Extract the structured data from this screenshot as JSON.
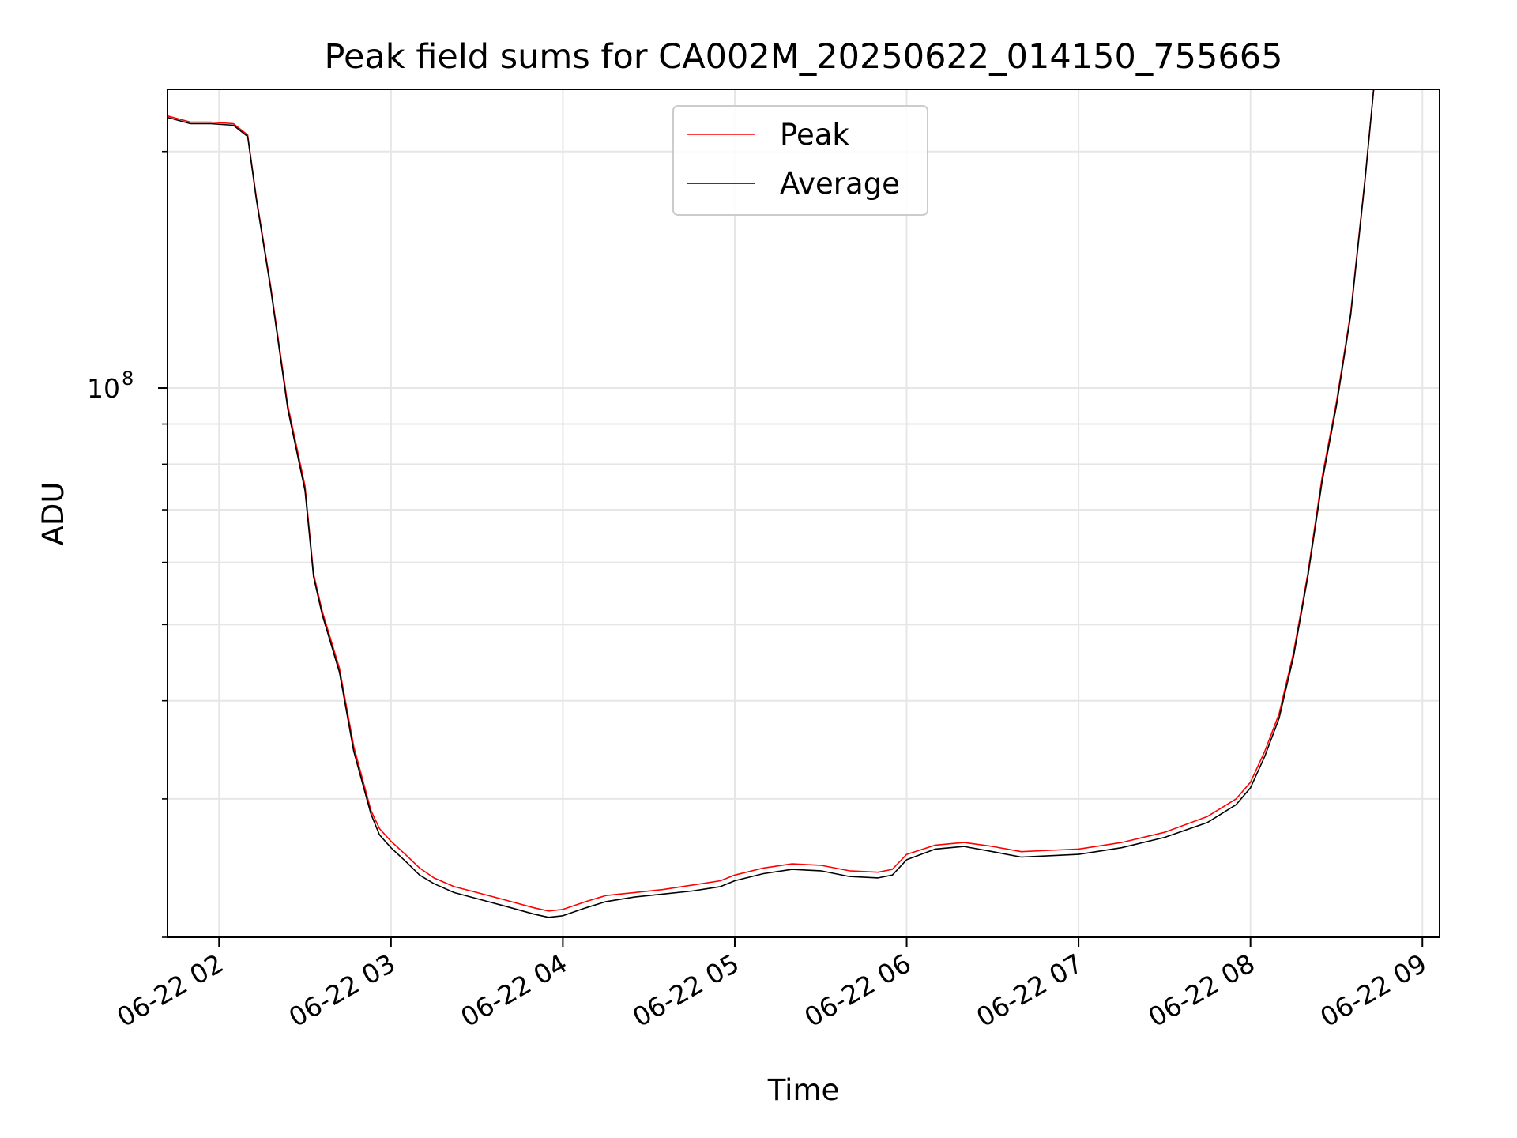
{
  "chart_data": {
    "type": "line",
    "title": "Peak field sums for CA002M_20250622_014150_755665",
    "xlabel": "Time",
    "ylabel": "ADU",
    "y_scale": "log",
    "grid": true,
    "legend_position": "upper-center",
    "xlim": [
      "2025-06-22 01:42",
      "2025-06-22 09:06"
    ],
    "ylim": [
      20000000,
      240000000
    ],
    "x_ticks": [
      {
        "value": "2025-06-22 02:00",
        "label": "06-22 02"
      },
      {
        "value": "2025-06-22 03:00",
        "label": "06-22 03"
      },
      {
        "value": "2025-06-22 04:00",
        "label": "06-22 04"
      },
      {
        "value": "2025-06-22 05:00",
        "label": "06-22 05"
      },
      {
        "value": "2025-06-22 06:00",
        "label": "06-22 06"
      },
      {
        "value": "2025-06-22 07:00",
        "label": "06-22 07"
      },
      {
        "value": "2025-06-22 08:00",
        "label": "06-22 08"
      },
      {
        "value": "2025-06-22 09:00",
        "label": "06-22 09"
      }
    ],
    "y_major_ticks": [
      {
        "value": 100000000,
        "base": "10",
        "exponent": "8"
      }
    ],
    "y_minor_ticks": [
      20000000,
      30000000,
      40000000,
      50000000,
      60000000,
      70000000,
      80000000,
      90000000,
      200000000
    ],
    "series": [
      {
        "name": "Peak",
        "color": "#ff0000",
        "x": [
          "2025-06-22 01:42",
          "2025-06-22 01:50",
          "2025-06-22 01:57",
          "2025-06-22 02:05",
          "2025-06-22 02:10",
          "2025-06-22 02:13",
          "2025-06-22 02:18",
          "2025-06-22 02:24",
          "2025-06-22 02:30",
          "2025-06-22 02:33",
          "2025-06-22 02:36",
          "2025-06-22 02:42",
          "2025-06-22 02:47",
          "2025-06-22 02:53",
          "2025-06-22 02:56",
          "2025-06-22 03:00",
          "2025-06-22 03:05",
          "2025-06-22 03:10",
          "2025-06-22 03:15",
          "2025-06-22 03:22",
          "2025-06-22 03:30",
          "2025-06-22 03:40",
          "2025-06-22 03:50",
          "2025-06-22 03:55",
          "2025-06-22 04:00",
          "2025-06-22 04:08",
          "2025-06-22 04:15",
          "2025-06-22 04:25",
          "2025-06-22 04:35",
          "2025-06-22 04:45",
          "2025-06-22 04:55",
          "2025-06-22 05:00",
          "2025-06-22 05:10",
          "2025-06-22 05:20",
          "2025-06-22 05:30",
          "2025-06-22 05:40",
          "2025-06-22 05:50",
          "2025-06-22 05:55",
          "2025-06-22 06:00",
          "2025-06-22 06:10",
          "2025-06-22 06:20",
          "2025-06-22 06:30",
          "2025-06-22 06:40",
          "2025-06-22 06:50",
          "2025-06-22 07:00",
          "2025-06-22 07:15",
          "2025-06-22 07:30",
          "2025-06-22 07:45",
          "2025-06-22 07:55",
          "2025-06-22 08:00",
          "2025-06-22 08:05",
          "2025-06-22 08:10",
          "2025-06-22 08:15",
          "2025-06-22 08:20",
          "2025-06-22 08:25",
          "2025-06-22 08:30",
          "2025-06-22 08:35",
          "2025-06-22 08:40",
          "2025-06-22 08:43"
        ],
        "y": [
          222000000,
          218000000,
          218000000,
          217000000,
          210000000,
          175000000,
          135000000,
          95000000,
          75000000,
          58000000,
          52000000,
          44000000,
          35000000,
          29000000,
          27500000,
          26500000,
          25500000,
          24500000,
          23800000,
          23200000,
          22800000,
          22300000,
          21800000,
          21600000,
          21700000,
          22200000,
          22600000,
          22800000,
          23000000,
          23300000,
          23600000,
          24000000,
          24500000,
          24800000,
          24700000,
          24300000,
          24200000,
          24400000,
          25500000,
          26200000,
          26400000,
          26100000,
          25700000,
          25800000,
          25900000,
          26400000,
          27200000,
          28500000,
          30000000,
          31500000,
          34500000,
          38500000,
          46000000,
          58000000,
          77000000,
          96000000,
          125000000,
          185000000,
          240000000
        ]
      },
      {
        "name": "Average",
        "color": "#000000",
        "x": [
          "2025-06-22 01:42",
          "2025-06-22 01:50",
          "2025-06-22 01:57",
          "2025-06-22 02:05",
          "2025-06-22 02:10",
          "2025-06-22 02:13",
          "2025-06-22 02:18",
          "2025-06-22 02:24",
          "2025-06-22 02:30",
          "2025-06-22 02:33",
          "2025-06-22 02:36",
          "2025-06-22 02:42",
          "2025-06-22 02:47",
          "2025-06-22 02:53",
          "2025-06-22 02:56",
          "2025-06-22 03:00",
          "2025-06-22 03:05",
          "2025-06-22 03:10",
          "2025-06-22 03:15",
          "2025-06-22 03:22",
          "2025-06-22 03:30",
          "2025-06-22 03:40",
          "2025-06-22 03:50",
          "2025-06-22 03:55",
          "2025-06-22 04:00",
          "2025-06-22 04:08",
          "2025-06-22 04:15",
          "2025-06-22 04:25",
          "2025-06-22 04:35",
          "2025-06-22 04:45",
          "2025-06-22 04:55",
          "2025-06-22 05:00",
          "2025-06-22 05:10",
          "2025-06-22 05:20",
          "2025-06-22 05:30",
          "2025-06-22 05:40",
          "2025-06-22 05:50",
          "2025-06-22 05:55",
          "2025-06-22 06:00",
          "2025-06-22 06:10",
          "2025-06-22 06:20",
          "2025-06-22 06:30",
          "2025-06-22 06:40",
          "2025-06-22 06:50",
          "2025-06-22 07:00",
          "2025-06-22 07:15",
          "2025-06-22 07:30",
          "2025-06-22 07:45",
          "2025-06-22 07:55",
          "2025-06-22 08:00",
          "2025-06-22 08:05",
          "2025-06-22 08:10",
          "2025-06-22 08:15",
          "2025-06-22 08:20",
          "2025-06-22 08:25",
          "2025-06-22 08:30",
          "2025-06-22 08:35",
          "2025-06-22 08:40",
          "2025-06-22 08:43"
        ],
        "y": [
          221000000,
          217000000,
          217000000,
          216000000,
          209000000,
          174000000,
          134000000,
          94000000,
          74000000,
          57500000,
          51500000,
          43500000,
          34500000,
          28700000,
          27000000,
          26000000,
          25000000,
          24000000,
          23400000,
          22800000,
          22400000,
          21900000,
          21400000,
          21200000,
          21300000,
          21800000,
          22200000,
          22500000,
          22700000,
          22900000,
          23200000,
          23600000,
          24100000,
          24400000,
          24300000,
          23900000,
          23800000,
          24000000,
          25100000,
          25900000,
          26100000,
          25700000,
          25300000,
          25400000,
          25500000,
          26000000,
          26800000,
          28000000,
          29500000,
          31000000,
          34000000,
          38000000,
          45500000,
          57500000,
          76000000,
          95000000,
          124000000,
          184000000,
          240000000
        ]
      }
    ]
  }
}
